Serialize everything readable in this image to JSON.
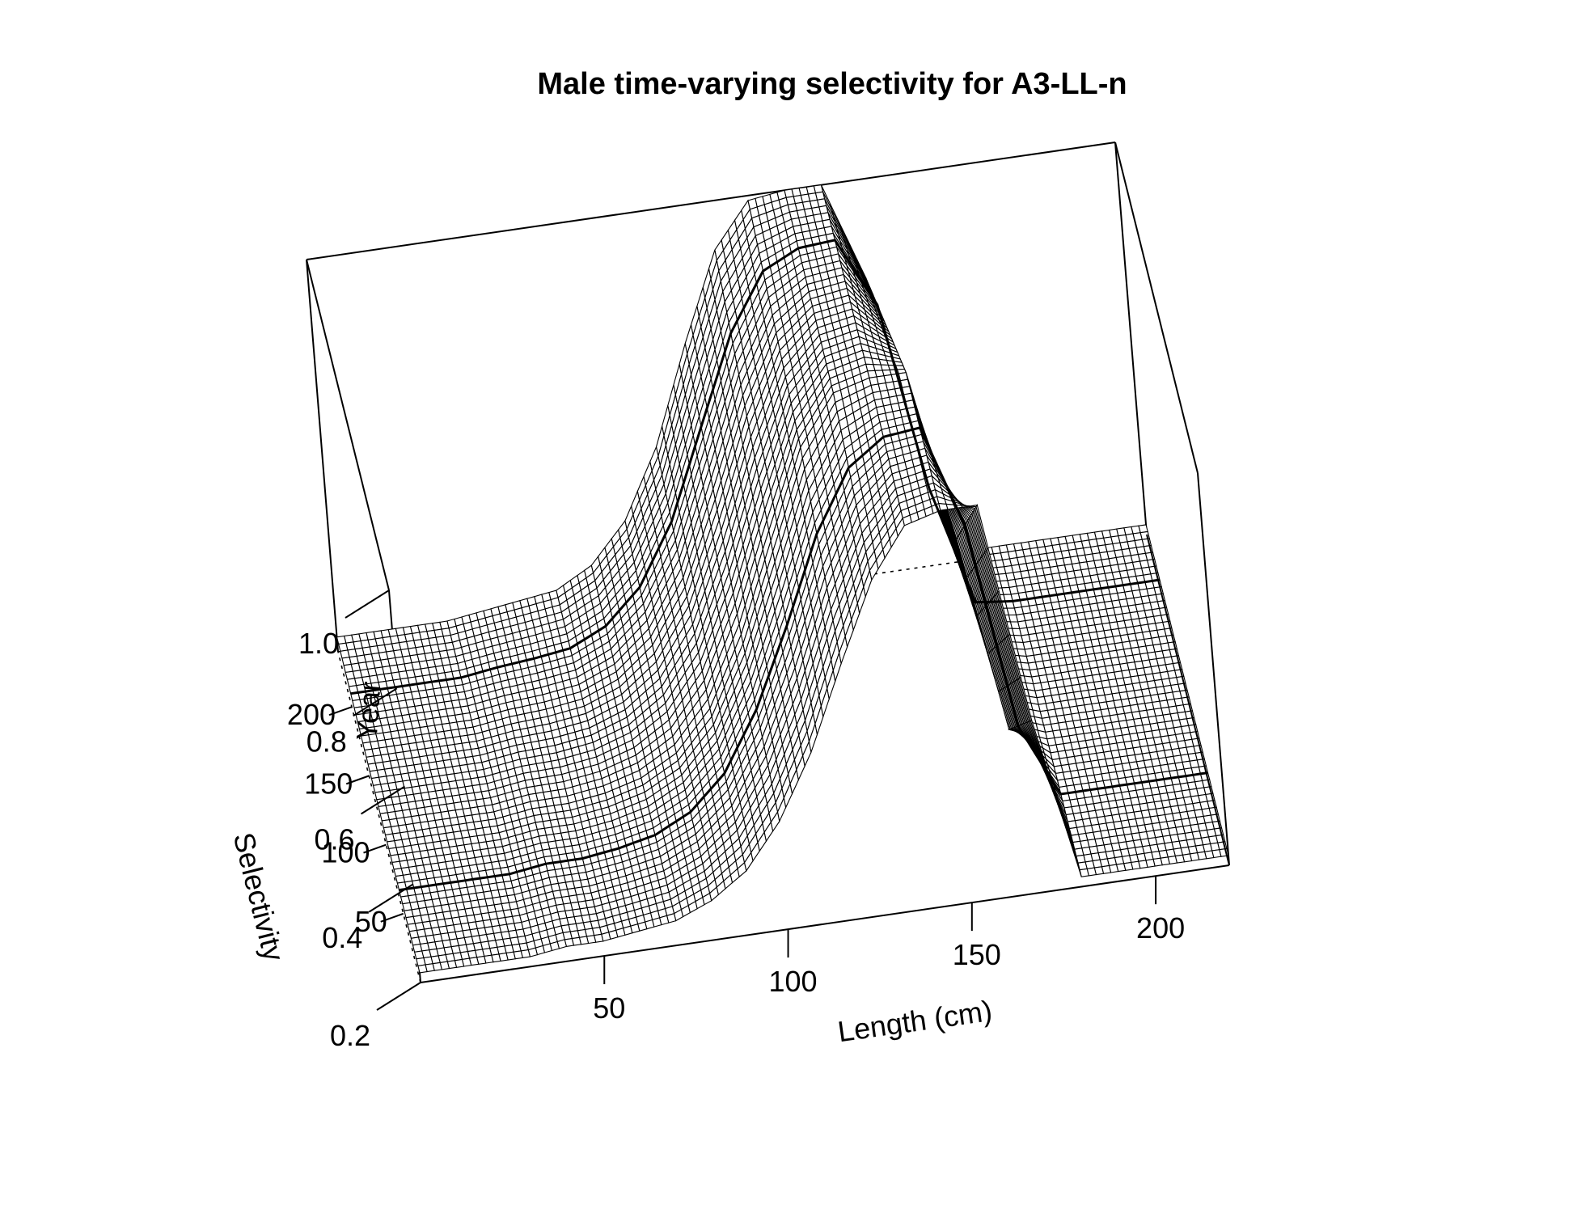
{
  "chart_data": {
    "type": "surface",
    "title": "Male time-varying selectivity for A3-LL-n",
    "xlabel": "Length (cm)",
    "ylabel": "Year",
    "zlabel": "Selectivity",
    "xlim": [
      0,
      220
    ],
    "ylim": [
      0,
      240
    ],
    "zlim": [
      0.2,
      1.0
    ],
    "x_ticks": [
      "50",
      "100",
      "150",
      "200"
    ],
    "y_ticks": [
      "50",
      "100",
      "150",
      "200"
    ],
    "z_ticks": [
      "0.2",
      "0.4",
      "0.6",
      "0.8",
      "1.0"
    ],
    "x_tick_values": [
      50,
      100,
      150,
      200
    ],
    "y_tick_values": [
      50,
      100,
      150,
      200
    ],
    "z_tick_values": [
      0.2,
      0.4,
      0.6,
      0.8,
      1.0
    ],
    "x": [
      0,
      10,
      20,
      30,
      40,
      50,
      60,
      70,
      80,
      90,
      100,
      110,
      120,
      130,
      140,
      150,
      160,
      170,
      180,
      190,
      200,
      210,
      220
    ],
    "year_profiles": [
      {
        "year": 0,
        "values": [
          0.22,
          0.22,
          0.22,
          0.22,
          0.23,
          0.23,
          0.24,
          0.25,
          0.28,
          0.33,
          0.42,
          0.55,
          0.72,
          0.88,
          0.98,
          1.0,
          1.0,
          0.55,
          0.22,
          0.22,
          0.22,
          0.22,
          0.22
        ]
      },
      {
        "year": 100,
        "values": [
          0.22,
          0.22,
          0.22,
          0.22,
          0.23,
          0.23,
          0.24,
          0.26,
          0.3,
          0.38,
          0.52,
          0.7,
          0.88,
          0.98,
          1.0,
          1.0,
          0.65,
          0.25,
          0.22,
          0.22,
          0.22,
          0.22,
          0.22
        ]
      },
      {
        "year": 240,
        "values": [
          0.23,
          0.23,
          0.23,
          0.23,
          0.24,
          0.25,
          0.26,
          0.3,
          0.38,
          0.52,
          0.72,
          0.9,
          0.99,
          1.0,
          1.0,
          0.8,
          0.4,
          0.22,
          0.22,
          0.22,
          0.22,
          0.22,
          0.22
        ]
      }
    ]
  }
}
